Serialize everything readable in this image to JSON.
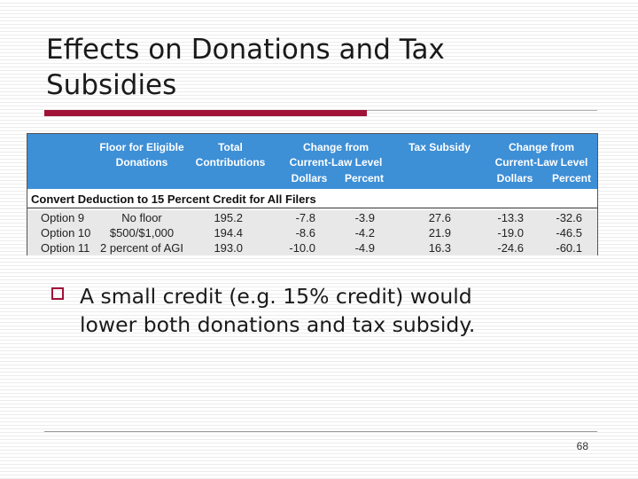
{
  "slide": {
    "title_line1": "Effects on Donations and Tax",
    "title_line2": "Subsidies",
    "bullet_line1": "A small credit (e.g. 15% credit) would",
    "bullet_line2": "lower both donations and tax subsidy.",
    "page_number": "68",
    "accent_color": "#a01238",
    "header_color": "#3d8fd6"
  },
  "table": {
    "headers": {
      "floor_l1": "Floor for Eligible",
      "floor_l2": "Donations",
      "total_l1": "Total",
      "total_l2": "Contributions",
      "change1_l1": "Change from",
      "change1_l2": "Current-Law Level",
      "dollars1": "Dollars",
      "percent1": "Percent",
      "subsidy": "Tax Subsidy",
      "change2_l1": "Change from",
      "change2_l2": "Current-Law Level",
      "dollars2": "Dollars",
      "percent2": "Percent"
    },
    "section_label": "Convert Deduction to 15 Percent Credit for All Filers",
    "rows": [
      {
        "option": "Option 9",
        "floor": "No floor",
        "total": "195.2",
        "d1": "-7.8",
        "p1": "-3.9",
        "subsidy": "27.6",
        "d2": "-13.3",
        "p2": "-32.6"
      },
      {
        "option": "Option 10",
        "floor": "$500/$1,000",
        "total": "194.4",
        "d1": "-8.6",
        "p1": "-4.2",
        "subsidy": "21.9",
        "d2": "-19.0",
        "p2": "-46.5"
      },
      {
        "option": "Option 11",
        "floor": "2 percent of AGI",
        "total": "193.0",
        "d1": "-10.0",
        "p1": "-4.9",
        "subsidy": "16.3",
        "d2": "-24.6",
        "p2": "-60.1"
      }
    ]
  }
}
